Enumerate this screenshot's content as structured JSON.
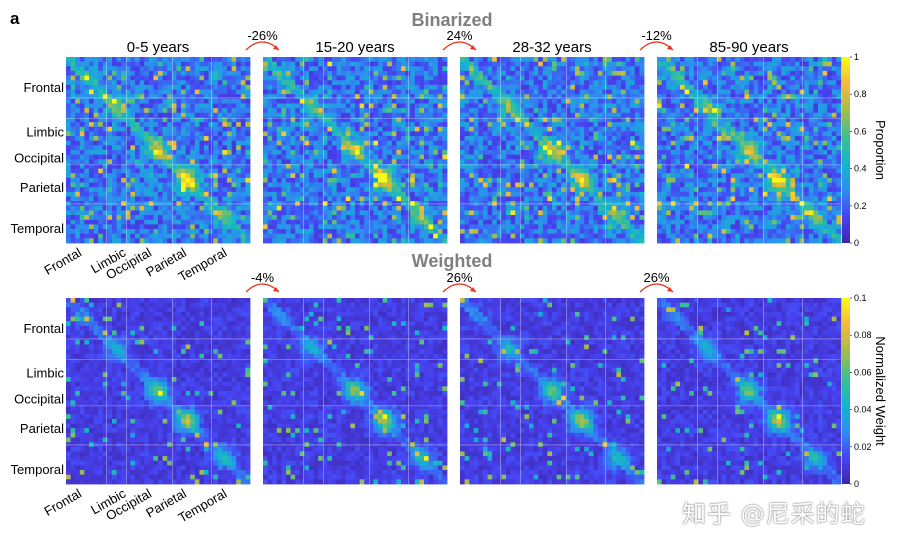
{
  "panel_letter": "a",
  "watermark": "知乎 @尼采的蛇",
  "colors": {
    "colormap": [
      "#3e26a8",
      "#4743f3",
      "#2d8ef0",
      "#13b6cb",
      "#3ec08f",
      "#a5bd4a",
      "#f4ba3c",
      "#f9fb15"
    ],
    "title_gray": "#7f7f7f",
    "arrow_red": "#e8341c",
    "divider": "#ffffff"
  },
  "chart_data": [
    {
      "type": "heatmap",
      "title": "Binarized",
      "panels": [
        "0-5 years",
        "15-20 years",
        "28-32 years",
        "85-90 years"
      ],
      "changes": [
        "-26%",
        "24%",
        "-12%"
      ],
      "row_labels": [
        "Frontal",
        "Limbic",
        "Occipital",
        "Parietal",
        "Temporal"
      ],
      "col_labels": [
        "Frontal",
        "Limbic",
        "Occipital",
        "Parietal",
        "Temporal"
      ],
      "colorbar": {
        "label": "Proportion",
        "range": [
          0,
          1
        ],
        "ticks": [
          "0",
          "0.2",
          "0.4",
          "0.6",
          "0.8",
          "1"
        ]
      }
    },
    {
      "type": "heatmap",
      "title": "Weighted",
      "panels": [
        "0-5 years",
        "15-20 years",
        "28-32 years",
        "85-90 years"
      ],
      "changes": [
        "-4%",
        "26%",
        "26%"
      ],
      "row_labels": [
        "Frontal",
        "Limbic",
        "Occipital",
        "Parietal",
        "Temporal"
      ],
      "col_labels": [
        "Frontal",
        "Limbic",
        "Occipital",
        "Parietal",
        "Temporal"
      ],
      "colorbar": {
        "label": "Normalized Weight",
        "range": [
          0,
          0.1
        ],
        "ticks": [
          "0",
          "0.02",
          "0.04",
          "0.06",
          "0.08",
          "0.1"
        ]
      }
    }
  ]
}
